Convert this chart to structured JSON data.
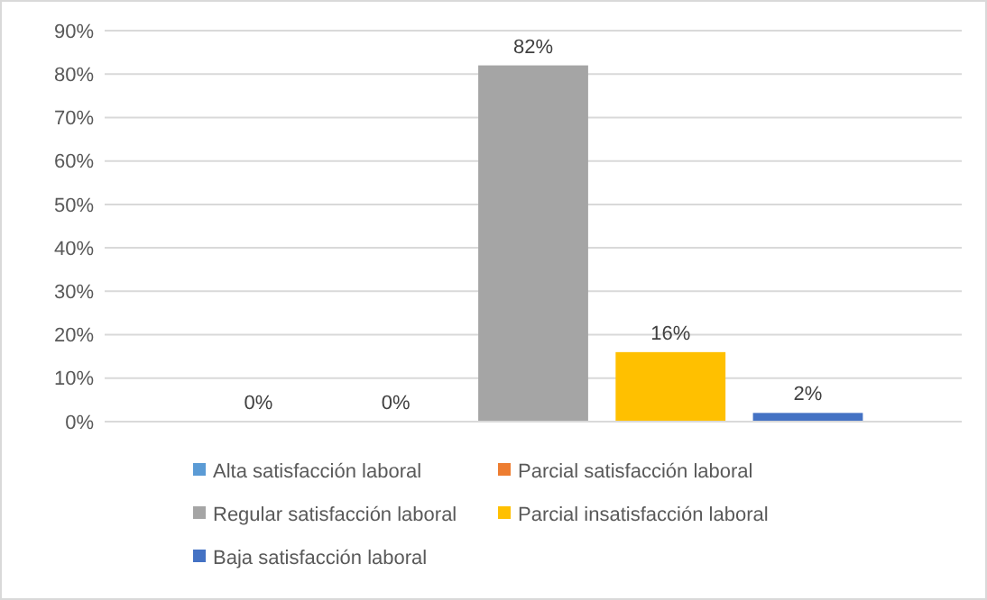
{
  "chart_data": {
    "type": "bar",
    "categories": [
      null
    ],
    "series": [
      {
        "name": "Alta satisfacción laboral",
        "color": "#5b9bd5",
        "values": [
          0
        ]
      },
      {
        "name": "Parcial satisfacción laboral",
        "color": "#ed7d31",
        "values": [
          0
        ]
      },
      {
        "name": "Regular satisfacción laboral",
        "color": "#a5a5a5",
        "values": [
          82
        ]
      },
      {
        "name": "Parcial insatisfacción laboral",
        "color": "#ffc000",
        "values": [
          16
        ]
      },
      {
        "name": "Baja satisfacción laboral",
        "color": "#4472c4",
        "values": [
          2
        ]
      }
    ],
    "ylim": [
      0,
      90
    ],
    "yticks": [
      {
        "value": 0,
        "label": "0%"
      },
      {
        "value": 10,
        "label": "10%"
      },
      {
        "value": 20,
        "label": "20%"
      },
      {
        "value": 30,
        "label": "30%"
      },
      {
        "value": 40,
        "label": "40%"
      },
      {
        "value": 50,
        "label": "50%"
      },
      {
        "value": 60,
        "label": "60%"
      },
      {
        "value": 70,
        "label": "70%"
      },
      {
        "value": 80,
        "label": "80%"
      },
      {
        "value": 90,
        "label": "90%"
      }
    ],
    "value_labels": [
      "0%",
      "0%",
      "82%",
      "16%",
      "2%"
    ],
    "grid": "y",
    "legend": "bottom"
  }
}
